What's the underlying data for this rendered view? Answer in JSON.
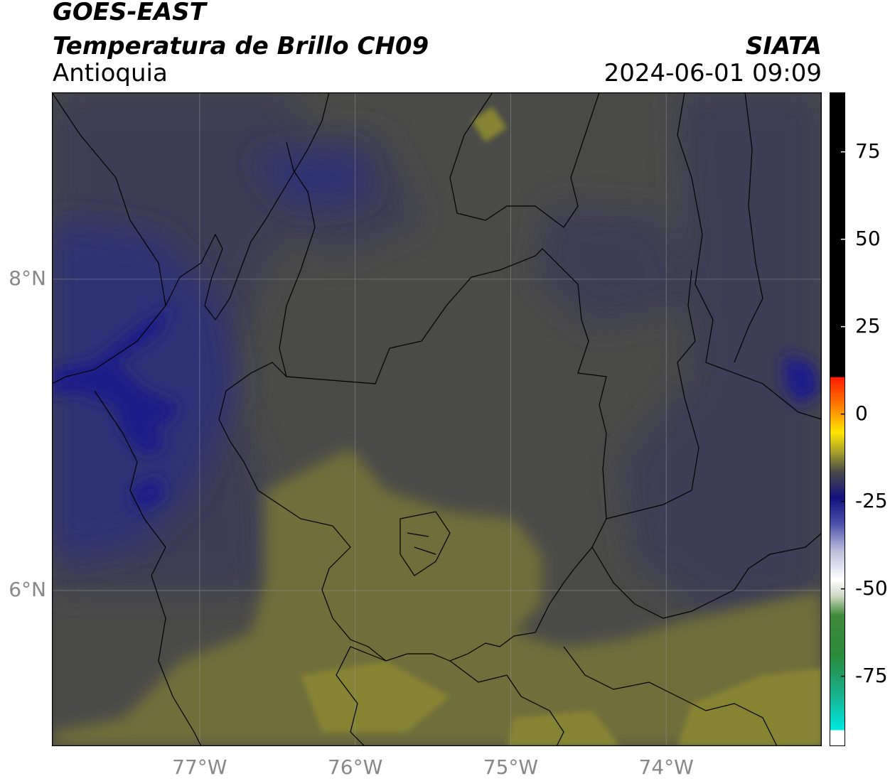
{
  "header": {
    "satellite": "GOES-EAST",
    "product": "Temperatura de Brillo CH09",
    "region": "Antioquia",
    "agency": "SIATA",
    "datetime": "2024-06-01 09:09"
  },
  "map": {
    "lon_range": [
      -77.95,
      -73.0
    ],
    "lat_range": [
      5.0,
      9.2
    ],
    "lon_ticks": [
      {
        "value": -77,
        "label": "77°W"
      },
      {
        "value": -76,
        "label": "76°W"
      },
      {
        "value": -75,
        "label": "75°W"
      },
      {
        "value": -74,
        "label": "74°W"
      }
    ],
    "lat_ticks": [
      {
        "value": 8,
        "label": "8°N"
      },
      {
        "value": 6,
        "label": "6°N"
      }
    ],
    "gridlines": true
  },
  "colorbar": {
    "range": [
      -95,
      92
    ],
    "ticks": [
      {
        "value": 75,
        "label": "75"
      },
      {
        "value": 50,
        "label": "50"
      },
      {
        "value": 25,
        "label": "25"
      },
      {
        "value": 0,
        "label": "0"
      },
      {
        "value": -25,
        "label": "-25"
      },
      {
        "value": -50,
        "label": "-50"
      },
      {
        "value": -75,
        "label": "-75"
      }
    ]
  },
  "colors": {
    "gray_field": "#4a4a48",
    "gray_blue": "#3d3d55",
    "blue_field": "#2f3075",
    "deep_blue": "#1c1c8a",
    "olive_field": "#6f6e3a",
    "olive_bright": "#858432"
  }
}
